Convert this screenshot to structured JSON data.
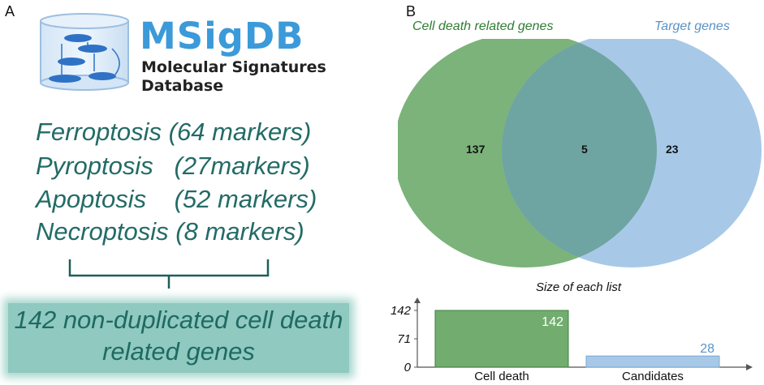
{
  "panel_a": {
    "letter": "A",
    "logo": {
      "title": "MSigDB",
      "subtitle_line1": "Molecular Signatures",
      "subtitle_line2": "Database",
      "icon": "database-cylinder-icon"
    },
    "markers": [
      "Ferroptosis (64 markers)",
      "Pyroptosis   (27markers)",
      "Apoptosis    (52 markers)",
      "Necroptosis (8 markers)"
    ],
    "result": {
      "line1": "142 non-duplicated cell death",
      "line2": "related genes"
    },
    "colors": {
      "text": "#236b66",
      "logo": "#3b9ad9",
      "box": "#8fc9bf"
    }
  },
  "panel_b": {
    "letter": "B",
    "venn": {
      "left_title": "Cell death related genes",
      "right_title": "Target genes",
      "left_only": "137",
      "overlap": "5",
      "right_only": "23",
      "colors": {
        "left": "#7bb37a",
        "right": "#a7c9e7",
        "overlap": "#6ea4a2"
      }
    }
  },
  "chart_data": {
    "type": "bar",
    "title": "Size of each list",
    "categories": [
      "Cell death",
      "Candidates"
    ],
    "values": [
      142,
      28
    ],
    "value_labels": [
      "142",
      "28"
    ],
    "yticks": [
      "0",
      "71",
      "142"
    ],
    "ylim": [
      0,
      142
    ],
    "colors": [
      "#72ad6f",
      "#a7c9e7"
    ],
    "label_colors": [
      "#ffffff",
      "#5b93c7"
    ]
  }
}
